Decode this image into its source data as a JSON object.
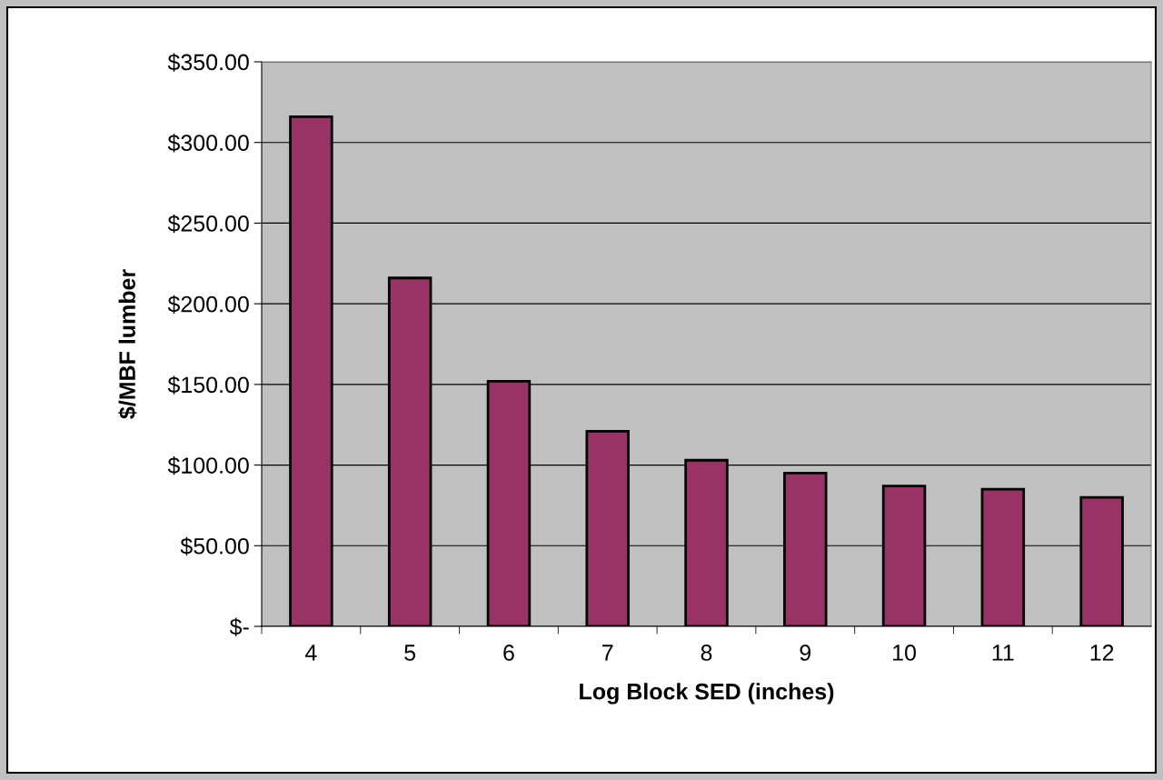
{
  "chart_data": {
    "type": "bar",
    "xlabel": "Log Block SED (inches)",
    "ylabel": "$/MBF lumber",
    "categories": [
      "4",
      "5",
      "6",
      "7",
      "8",
      "9",
      "10",
      "11",
      "12"
    ],
    "values": [
      316,
      216,
      152,
      121,
      103,
      95,
      87,
      85,
      80
    ],
    "color": "#993366",
    "ylim": [
      0,
      350
    ],
    "yticks": [
      {
        "value": 0,
        "label": "$-"
      },
      {
        "value": 50,
        "label": "$50.00"
      },
      {
        "value": 100,
        "label": "$100.00"
      },
      {
        "value": 150,
        "label": "$150.00"
      },
      {
        "value": 200,
        "label": "$200.00"
      },
      {
        "value": 250,
        "label": "$250.00"
      },
      {
        "value": 300,
        "label": "$300.00"
      },
      {
        "value": 350,
        "label": "$350.00"
      }
    ],
    "grid": "y"
  }
}
